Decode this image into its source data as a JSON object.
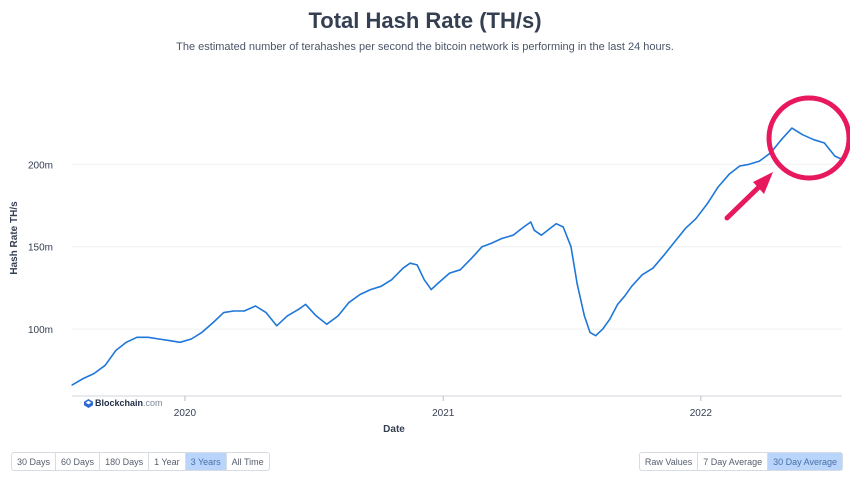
{
  "chart_data": {
    "type": "line",
    "title": "Total Hash Rate (TH/s)",
    "subtitle": "The estimated number of terahashes per second the bitcoin network is performing in the last 24 hours.",
    "xlabel": "Date",
    "ylabel": "Hash Rate TH/s",
    "x_ticks": [
      "2020",
      "2021",
      "2022"
    ],
    "y_ticks": [
      {
        "value": 100,
        "label": "100m"
      },
      {
        "value": 150,
        "label": "150m"
      },
      {
        "value": 200,
        "label": "200m"
      }
    ],
    "ylim": [
      60,
      250
    ],
    "xlim": [
      "2019-07-25",
      "2022-07-20"
    ],
    "grid": true,
    "series": [
      {
        "color": "#1f77d9",
        "points": [
          [
            "2019-07-25",
            66
          ],
          [
            "2019-08-10",
            70
          ],
          [
            "2019-08-25",
            73
          ],
          [
            "2019-09-10",
            78
          ],
          [
            "2019-09-25",
            87
          ],
          [
            "2019-10-10",
            92
          ],
          [
            "2019-10-25",
            95
          ],
          [
            "2019-11-10",
            95
          ],
          [
            "2019-11-25",
            94
          ],
          [
            "2019-12-10",
            93
          ],
          [
            "2019-12-25",
            92
          ],
          [
            "2020-01-10",
            94
          ],
          [
            "2020-01-25",
            98
          ],
          [
            "2020-02-10",
            104
          ],
          [
            "2020-02-25",
            110
          ],
          [
            "2020-03-10",
            111
          ],
          [
            "2020-03-25",
            111
          ],
          [
            "2020-04-10",
            114
          ],
          [
            "2020-04-25",
            110
          ],
          [
            "2020-05-10",
            102
          ],
          [
            "2020-05-25",
            108
          ],
          [
            "2020-06-10",
            112
          ],
          [
            "2020-06-20",
            115
          ],
          [
            "2020-07-05",
            108
          ],
          [
            "2020-07-20",
            103
          ],
          [
            "2020-08-05",
            108
          ],
          [
            "2020-08-20",
            116
          ],
          [
            "2020-09-05",
            121
          ],
          [
            "2020-09-20",
            124
          ],
          [
            "2020-10-05",
            126
          ],
          [
            "2020-10-20",
            130
          ],
          [
            "2020-11-05",
            137
          ],
          [
            "2020-11-15",
            140
          ],
          [
            "2020-11-25",
            139
          ],
          [
            "2020-12-05",
            130
          ],
          [
            "2020-12-15",
            124
          ],
          [
            "2020-12-25",
            128
          ],
          [
            "2021-01-10",
            134
          ],
          [
            "2021-01-25",
            136
          ],
          [
            "2021-02-10",
            143
          ],
          [
            "2021-02-25",
            150
          ],
          [
            "2021-03-10",
            152
          ],
          [
            "2021-03-25",
            155
          ],
          [
            "2021-04-10",
            157
          ],
          [
            "2021-04-25",
            162
          ],
          [
            "2021-05-05",
            165
          ],
          [
            "2021-05-10",
            160
          ],
          [
            "2021-05-20",
            157
          ],
          [
            "2021-06-01",
            161
          ],
          [
            "2021-06-10",
            164
          ],
          [
            "2021-06-20",
            162
          ],
          [
            "2021-07-01",
            150
          ],
          [
            "2021-07-10",
            127
          ],
          [
            "2021-07-20",
            108
          ],
          [
            "2021-07-28",
            98
          ],
          [
            "2021-08-05",
            96
          ],
          [
            "2021-08-15",
            100
          ],
          [
            "2021-08-25",
            106
          ],
          [
            "2021-09-05",
            115
          ],
          [
            "2021-09-15",
            120
          ],
          [
            "2021-09-25",
            126
          ],
          [
            "2021-10-10",
            133
          ],
          [
            "2021-10-25",
            137
          ],
          [
            "2021-11-10",
            145
          ],
          [
            "2021-11-25",
            153
          ],
          [
            "2021-12-10",
            161
          ],
          [
            "2021-12-25",
            167
          ],
          [
            "2022-01-10",
            176
          ],
          [
            "2022-01-25",
            186
          ],
          [
            "2022-02-10",
            194
          ],
          [
            "2022-02-25",
            199
          ],
          [
            "2022-03-10",
            200
          ],
          [
            "2022-03-25",
            202
          ],
          [
            "2022-04-10",
            207
          ],
          [
            "2022-04-25",
            215
          ],
          [
            "2022-05-10",
            222
          ],
          [
            "2022-05-25",
            218
          ],
          [
            "2022-06-10",
            215
          ],
          [
            "2022-06-25",
            213
          ],
          [
            "2022-07-10",
            205
          ],
          [
            "2022-07-20",
            203
          ]
        ]
      }
    ]
  },
  "controls": {
    "ranges": [
      "30 Days",
      "60 Days",
      "180 Days",
      "1 Year",
      "3 Years",
      "All Time"
    ],
    "active_range": "3 Years",
    "modes": [
      "Raw Values",
      "7 Day Average",
      "30 Day Average"
    ],
    "active_mode": "30 Day Average"
  },
  "brand": {
    "name": "Blockchain",
    "suffix": ".com"
  },
  "annotation": {
    "circle_color": "#e8185f",
    "arrow_color": "#e8185f"
  }
}
